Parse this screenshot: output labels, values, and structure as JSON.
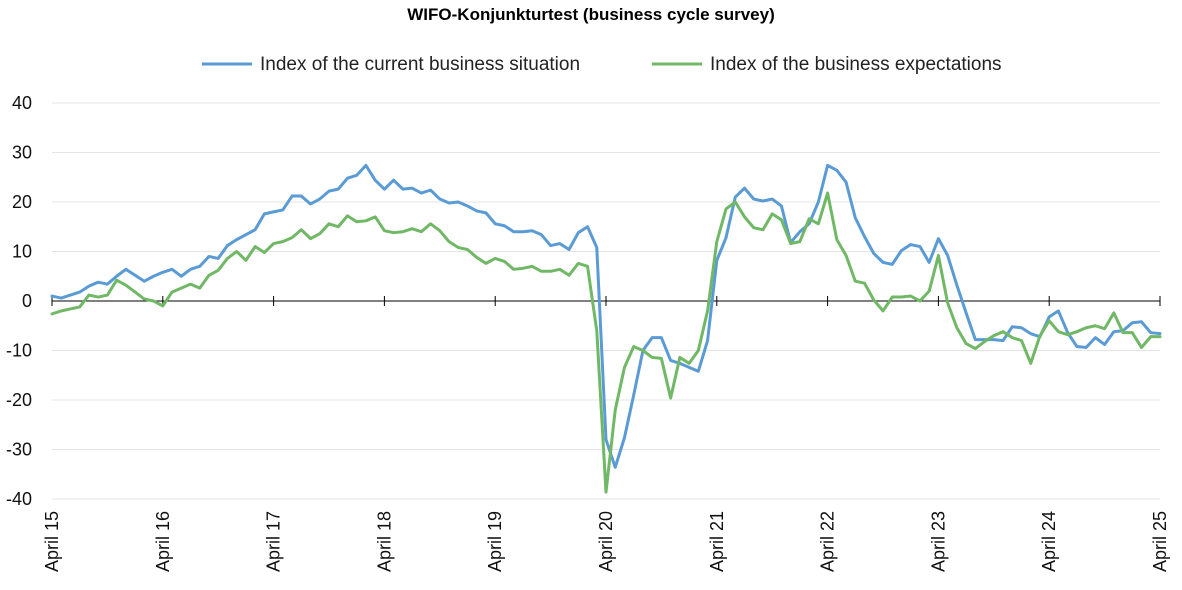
{
  "chart_data": {
    "type": "line",
    "title": "WIFO-Konjunkturtest (business cycle survey)",
    "xlabel": "",
    "ylabel": "",
    "ylim": [
      -40,
      40
    ],
    "yticks": [
      -40,
      -30,
      -20,
      -10,
      0,
      10,
      20,
      30,
      40
    ],
    "x_start": "2015-04",
    "x_end": "2025-04",
    "x_ticks": [
      "April 15",
      "April 16",
      "April 17",
      "April 18",
      "April 19",
      "April 20",
      "April 21",
      "April 22",
      "April 23",
      "April 24",
      "April 25"
    ],
    "grid": "horizontal",
    "legend_position": "top",
    "series": [
      {
        "name": "Index of the current business situation",
        "color": "#5b9bd5",
        "values": [
          1.0,
          0.6,
          1.2,
          1.8,
          3.0,
          3.8,
          3.4,
          5.0,
          6.4,
          5.2,
          4.0,
          5.0,
          5.8,
          6.4,
          5.0,
          6.4,
          7.0,
          9.0,
          8.6,
          11.2,
          12.4,
          13.4,
          14.4,
          17.6,
          18.0,
          18.4,
          21.2,
          21.2,
          19.6,
          20.6,
          22.2,
          22.6,
          24.8,
          25.4,
          27.4,
          24.4,
          22.6,
          24.4,
          22.6,
          22.8,
          21.8,
          22.4,
          20.6,
          19.8,
          20.0,
          19.2,
          18.2,
          17.8,
          15.6,
          15.2,
          14.0,
          14.0,
          14.2,
          13.4,
          11.2,
          11.6,
          10.4,
          13.8,
          15.0,
          10.8,
          -28.0,
          -33.6,
          -27.6,
          -19.0,
          -10.0,
          -7.4,
          -7.4,
          -12.0,
          -12.6,
          -13.4,
          -14.2,
          -8.0,
          8.2,
          12.8,
          21.0,
          22.8,
          20.6,
          20.2,
          20.6,
          19.2,
          11.8,
          14.0,
          15.6,
          20.0,
          27.4,
          26.4,
          24.0,
          16.8,
          13.0,
          9.6,
          7.8,
          7.4,
          10.2,
          11.4,
          11.0,
          7.8,
          12.6,
          9.2,
          3.2,
          -2.4,
          -7.8,
          -7.8,
          -7.8,
          -8.0,
          -5.2,
          -5.4,
          -6.6,
          -7.2,
          -3.2,
          -2.0,
          -6.4,
          -9.2,
          -9.4,
          -7.4,
          -8.8,
          -6.2,
          -6.0,
          -4.4,
          -4.2,
          -6.4,
          -6.6
        ]
      },
      {
        "name": "Index of the business expectations",
        "color": "#70b865",
        "values": [
          -2.6,
          -2.0,
          -1.6,
          -1.2,
          1.2,
          0.8,
          1.2,
          4.2,
          3.2,
          1.8,
          0.4,
          0.0,
          -1.0,
          1.8,
          2.6,
          3.4,
          2.6,
          5.2,
          6.2,
          8.6,
          10.0,
          8.2,
          11.0,
          9.8,
          11.6,
          12.0,
          12.8,
          14.4,
          12.6,
          13.6,
          15.6,
          15.0,
          17.2,
          16.0,
          16.2,
          17.0,
          14.2,
          13.8,
          14.0,
          14.6,
          14.0,
          15.6,
          14.2,
          12.0,
          10.8,
          10.4,
          8.8,
          7.6,
          8.6,
          8.0,
          6.4,
          6.6,
          7.0,
          6.0,
          6.0,
          6.4,
          5.2,
          7.6,
          7.0,
          -6.0,
          -38.6,
          -22.0,
          -13.4,
          -9.2,
          -10.0,
          -11.4,
          -11.6,
          -19.6,
          -11.4,
          -12.6,
          -10.0,
          -2.0,
          12.0,
          18.6,
          20.0,
          17.0,
          14.8,
          14.4,
          17.6,
          16.4,
          11.6,
          12.0,
          16.6,
          15.6,
          21.8,
          12.4,
          9.2,
          4.0,
          3.6,
          0.2,
          -2.0,
          0.8,
          0.8,
          1.0,
          0.0,
          2.0,
          9.2,
          -0.4,
          -5.4,
          -8.6,
          -9.6,
          -8.2,
          -7.0,
          -6.2,
          -7.4,
          -8.0,
          -12.6,
          -7.0,
          -4.0,
          -6.2,
          -6.8,
          -6.2,
          -5.4,
          -5.0,
          -5.6,
          -2.4,
          -6.4,
          -6.4,
          -9.4,
          -7.2,
          -7.2
        ]
      }
    ]
  }
}
